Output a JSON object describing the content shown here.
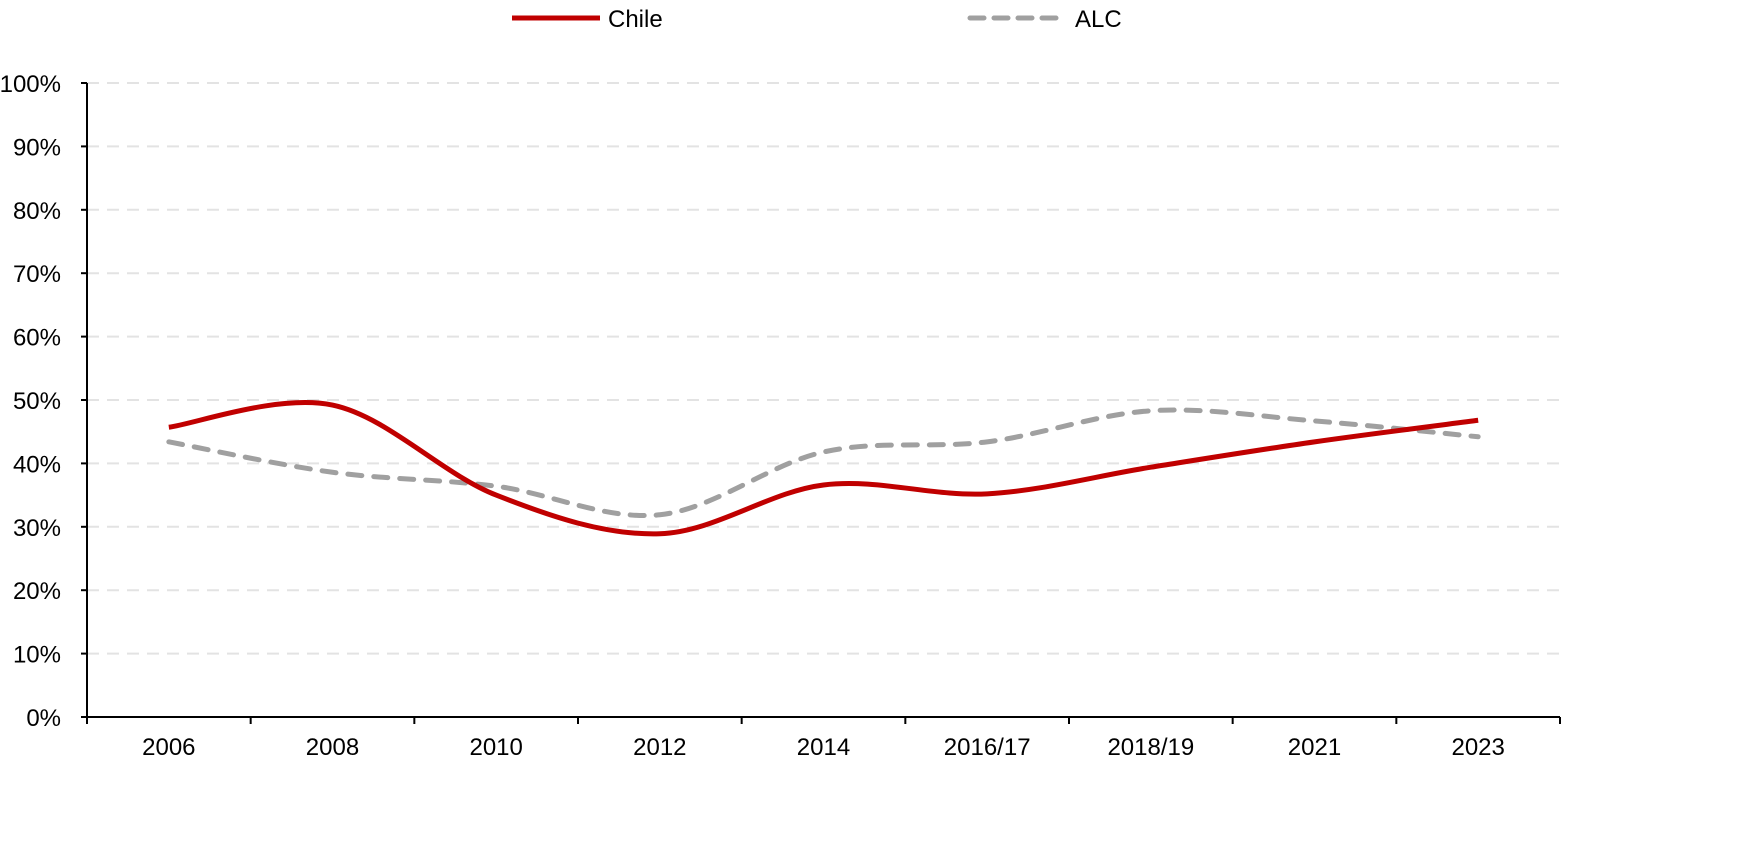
{
  "chart_data": {
    "type": "line",
    "title": "",
    "xlabel": "",
    "ylabel": "",
    "categories": [
      "2006",
      "2008",
      "2010",
      "2012",
      "2014",
      "2016/17",
      "2018/19",
      "2021",
      "2023"
    ],
    "ylim": [
      0,
      100
    ],
    "yticks": [
      "0%",
      "10%",
      "20%",
      "30%",
      "40%",
      "50%",
      "60%",
      "70%",
      "80%",
      "90%",
      "100%"
    ],
    "grid": true,
    "legend_position": "top",
    "series": [
      {
        "name": "Chile",
        "color": "#C00000",
        "style": "solid",
        "values": [
          45.7,
          49.2,
          35.0,
          28.9,
          36.6,
          35.2,
          39.4,
          43.4,
          46.8
        ]
      },
      {
        "name": "ALC",
        "color": "#A0A0A0",
        "style": "dashed",
        "values": [
          43.4,
          38.6,
          36.4,
          31.9,
          41.8,
          43.4,
          48.3,
          46.7,
          44.2
        ]
      }
    ]
  }
}
